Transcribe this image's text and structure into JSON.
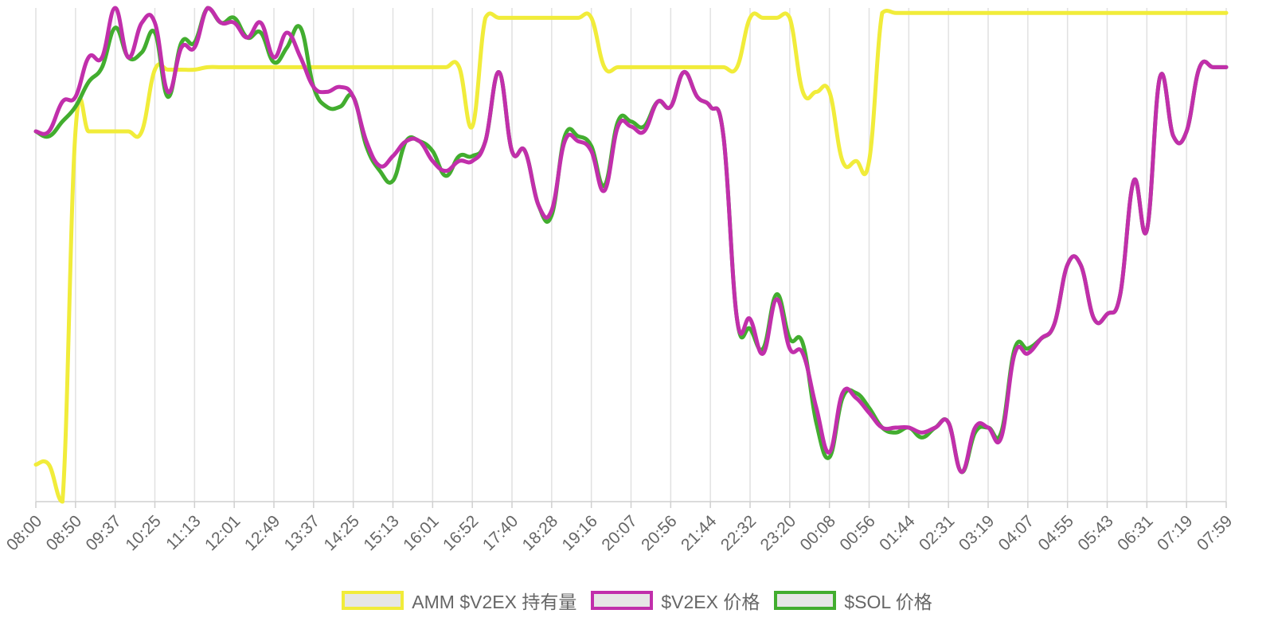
{
  "chart_data": {
    "type": "line",
    "title": "",
    "xlabel": "",
    "ylabel": "",
    "y_axis_labels_visible": false,
    "x_tick_labels": [
      "08:00",
      "08:50",
      "09:37",
      "10:25",
      "11:13",
      "12:01",
      "12:49",
      "13:37",
      "14:25",
      "15:13",
      "16:01",
      "16:52",
      "17:40",
      "18:28",
      "19:16",
      "20:07",
      "20:56",
      "21:44",
      "22:32",
      "23:20",
      "00:08",
      "00:56",
      "01:44",
      "02:31",
      "03:19",
      "04:07",
      "04:55",
      "05:43",
      "06:31",
      "07:19",
      "07:59"
    ],
    "grid": "vertical",
    "legend_position": "bottom",
    "x": [
      0,
      0.33,
      0.67,
      1,
      1.33,
      1.67,
      2,
      2.33,
      2.67,
      3,
      3.33,
      3.67,
      4,
      4.33,
      4.67,
      5,
      5.33,
      5.67,
      6,
      6.33,
      6.67,
      7,
      7.33,
      7.67,
      8,
      8.33,
      8.67,
      9,
      9.33,
      9.67,
      10,
      10.33,
      10.67,
      11,
      11.33,
      11.67,
      12,
      12.33,
      12.67,
      13,
      13.33,
      13.67,
      14,
      14.33,
      14.67,
      15,
      15.33,
      15.67,
      16,
      16.33,
      16.67,
      17,
      17.33,
      17.67,
      18,
      18.33,
      18.67,
      19,
      19.33,
      19.67,
      20,
      20.33,
      20.67,
      21,
      21.33,
      21.67,
      22,
      22.33,
      22.67,
      23,
      23.33,
      23.67,
      24,
      24.33,
      24.67,
      25,
      25.33,
      25.67,
      26,
      26.33,
      26.67,
      27,
      27.33,
      27.67,
      28,
      28.33,
      28.67,
      29,
      29.33,
      29.67,
      30
    ],
    "series": [
      {
        "name": "AMM $V2EX 持有量",
        "color": "#f1ec3a",
        "values": [
          7.5,
          7.5,
          0,
          75,
          75,
          75,
          75,
          75,
          75,
          87.5,
          87.5,
          87.5,
          87.5,
          88,
          88,
          88,
          88,
          88,
          88,
          88,
          88,
          88,
          88,
          88,
          88,
          88,
          88,
          88,
          88,
          88,
          88,
          88,
          88,
          76,
          98,
          98,
          98,
          98,
          98,
          98,
          98,
          98,
          98,
          88,
          88,
          88,
          88,
          88,
          88,
          88,
          88,
          88,
          88,
          88,
          98,
          98,
          98,
          98,
          83,
          83,
          83,
          69,
          69,
          69,
          99,
          99,
          99,
          99,
          99,
          99,
          99,
          99,
          99,
          99,
          99,
          99,
          99,
          99,
          99,
          99,
          99,
          99,
          99,
          99,
          99,
          99,
          99,
          99,
          99,
          99,
          99
        ]
      },
      {
        "name": "$V2EX 价格",
        "color": "#c12fab",
        "values": [
          75,
          75,
          81,
          82,
          90,
          90,
          100,
          90,
          97,
          97,
          83,
          92,
          92,
          100,
          97,
          97,
          94,
          97,
          90,
          95,
          90,
          84,
          83,
          84,
          82,
          73,
          68,
          70,
          73,
          73,
          69,
          67,
          69,
          69,
          73,
          87,
          71,
          71,
          60,
          59,
          73,
          73,
          71,
          63,
          76,
          76,
          75,
          81,
          80,
          87,
          82,
          80,
          74,
          37,
          37,
          30,
          41,
          31,
          30,
          19,
          10,
          22,
          21,
          18,
          15,
          15,
          15,
          14,
          15,
          16,
          6,
          15,
          15,
          13,
          30,
          30,
          33,
          36,
          48,
          48,
          37,
          38,
          42,
          65,
          55,
          86,
          74,
          75,
          88,
          88,
          88
        ]
      },
      {
        "name": "$SOL 价格",
        "color": "#42ad2f",
        "values": [
          75,
          74,
          77,
          80,
          85,
          88,
          96,
          90,
          91,
          95,
          82,
          93,
          93,
          100,
          97,
          98,
          94,
          95,
          89,
          92,
          96,
          84,
          80,
          80,
          82,
          72,
          67,
          65,
          73,
          73,
          71,
          66,
          70,
          70,
          73,
          87,
          71,
          71,
          60,
          58,
          74,
          74,
          72,
          64,
          77,
          77,
          76,
          81,
          80,
          87,
          82,
          80,
          74,
          37,
          35,
          31,
          42,
          33,
          32,
          16,
          9,
          21,
          22,
          19,
          15,
          14,
          15,
          13,
          15,
          16,
          6,
          14,
          15,
          14,
          31,
          31,
          33,
          36,
          48,
          48,
          37,
          38,
          42,
          65,
          55,
          86,
          74,
          75,
          88,
          88,
          88
        ]
      }
    ]
  }
}
